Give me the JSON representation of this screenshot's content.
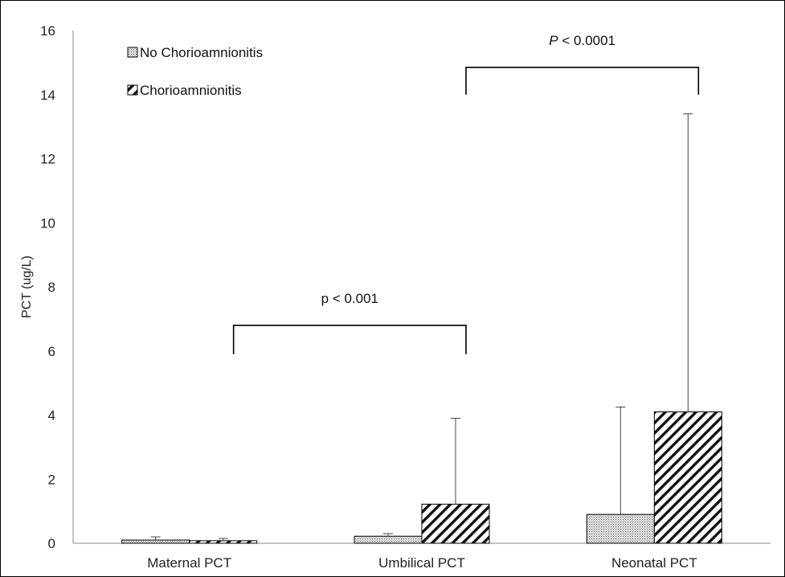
{
  "chart_data": {
    "type": "bar",
    "categories": [
      "Maternal PCT",
      "Umbilical PCT",
      "Neonatal PCT"
    ],
    "ylabel": "PCT (ug/L)",
    "xlabel": "",
    "ylim": [
      0,
      16
    ],
    "yticks": [
      0,
      2,
      4,
      6,
      8,
      10,
      12,
      14,
      16
    ],
    "grid": false,
    "legend_position": "top-left",
    "series": [
      {
        "name": "No Chorioamnionitis",
        "pattern": "dots",
        "values": [
          0.1,
          0.22,
          0.9
        ],
        "error_upper": [
          0.2,
          0.3,
          4.25
        ]
      },
      {
        "name": "Chorioamnionitis",
        "pattern": "diagonal-hatch",
        "values": [
          0.08,
          1.22,
          4.1
        ],
        "error_upper": [
          0.15,
          3.9,
          13.4
        ]
      }
    ],
    "annotations": [
      {
        "text": "p < 0.001",
        "italic_prefix": "",
        "from_category": 0,
        "to_category": 1,
        "level": 6.8,
        "drop_to": 5.9
      },
      {
        "text": " < 0.0001",
        "italic_prefix": "P",
        "from_category": 1,
        "to_category": 2,
        "level": 14.85,
        "drop_to": 14.0
      }
    ]
  }
}
